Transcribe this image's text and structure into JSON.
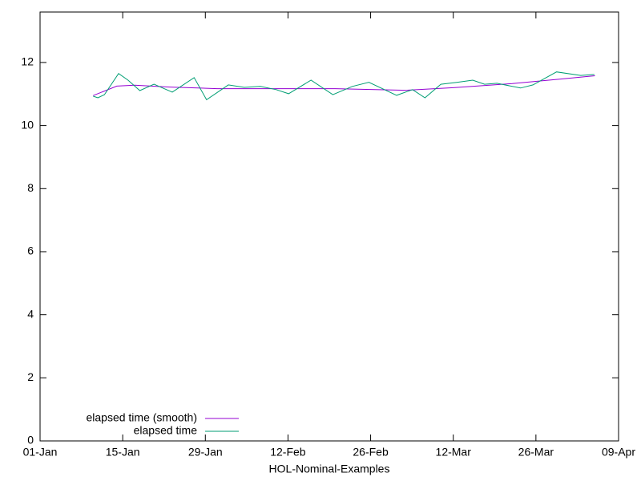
{
  "chart_data": {
    "type": "line",
    "xlabel": "HOL-Nominal-Examples",
    "xlim": [
      0,
      98
    ],
    "xticks": [
      {
        "value": 0,
        "label": "01-Jan"
      },
      {
        "value": 14,
        "label": "15-Jan"
      },
      {
        "value": 28,
        "label": "29-Jan"
      },
      {
        "value": 42,
        "label": "12-Feb"
      },
      {
        "value": 56,
        "label": "26-Feb"
      },
      {
        "value": 70,
        "label": "12-Mar"
      },
      {
        "value": 84,
        "label": "26-Mar"
      },
      {
        "value": 98,
        "label": "09-Apr"
      }
    ],
    "ylim": [
      0,
      13.6
    ],
    "yticks": [
      0,
      2,
      4,
      6,
      8,
      10,
      12
    ],
    "legend": "bottom-left",
    "series": [
      {
        "name": "elapsed time (smooth)",
        "color": "#9400d3",
        "x": [
          9,
          13,
          16,
          22,
          30,
          40,
          50,
          62,
          70,
          80,
          88,
          94
        ],
        "values": [
          10.95,
          11.25,
          11.28,
          11.22,
          11.17,
          11.17,
          11.17,
          11.12,
          11.2,
          11.33,
          11.47,
          11.58
        ]
      },
      {
        "name": "elapsed time",
        "color": "#009e73",
        "x": [
          9,
          9.8,
          10.9,
          13.3,
          14.9,
          16.9,
          19.3,
          22.4,
          26.1,
          28.2,
          31.9,
          34.6,
          37.3,
          40.0,
          42.1,
          45.9,
          49.6,
          52.9,
          55.7,
          60.4,
          63.1,
          65.2,
          67.9,
          70.6,
          73.3,
          75.3,
          77.4,
          81.4,
          83.5,
          87.5,
          91.6,
          93.9
        ],
        "values": [
          10.93,
          10.88,
          10.98,
          11.65,
          11.44,
          11.11,
          11.31,
          11.06,
          11.52,
          10.82,
          11.29,
          11.21,
          11.24,
          11.14,
          11.01,
          11.44,
          10.98,
          11.24,
          11.37,
          10.96,
          11.14,
          10.88,
          11.31,
          11.37,
          11.44,
          11.31,
          11.34,
          11.19,
          11.29,
          11.7,
          11.59,
          11.62
        ]
      }
    ]
  }
}
